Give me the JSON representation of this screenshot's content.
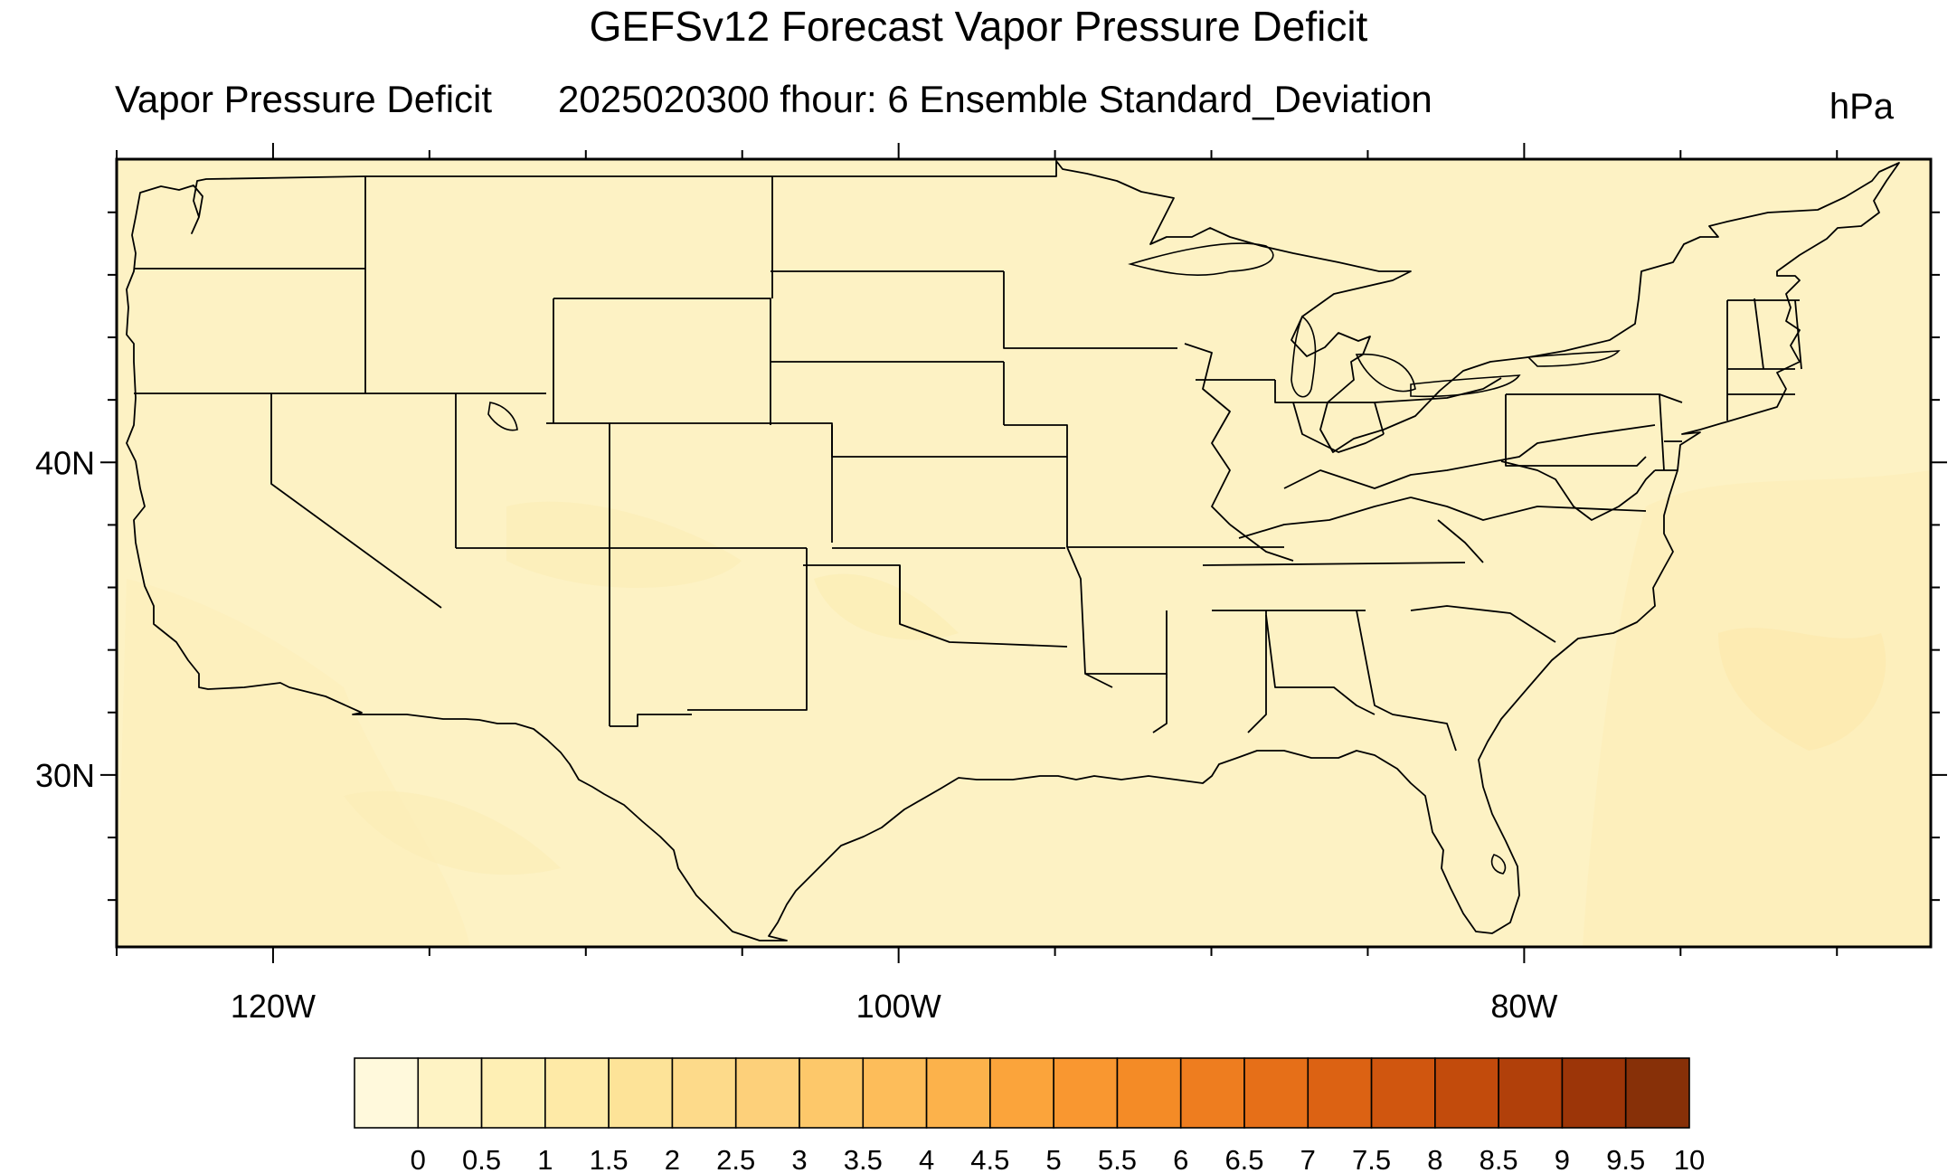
{
  "title": "GEFSv12 Forecast Vapor Pressure Deficit",
  "subtitle_left": "Vapor Pressure Deficit",
  "subtitle_center": "2025020300 fhour: 6 Ensemble Standard_Deviation",
  "units": "hPa",
  "map": {
    "projection": "cylindrical-equidistant",
    "region": "Contiguous United States",
    "lon_range": [
      -125,
      -67
    ],
    "lat_range": [
      24.5,
      49.7
    ],
    "x_ticks": [
      {
        "value": -120,
        "label": "120W"
      },
      {
        "value": -100,
        "label": "100W"
      },
      {
        "value": -80,
        "label": "80W"
      }
    ],
    "y_ticks": [
      {
        "value": 40,
        "label": "40N"
      },
      {
        "value": 30,
        "label": "30N"
      }
    ],
    "field_note": "values near 0.5 hPa across domain",
    "background_color": "#fdf2c4"
  },
  "colorbar": {
    "labels": [
      "0",
      "0.5",
      "1",
      "1.5",
      "2",
      "2.5",
      "3",
      "3.5",
      "4",
      "4.5",
      "5",
      "5.5",
      "6",
      "6.5",
      "7",
      "7.5",
      "8",
      "8.5",
      "9",
      "9.5",
      "10"
    ],
    "colors": [
      "#fff9dc",
      "#fef3c4",
      "#feefb4",
      "#feeaa7",
      "#fde398",
      "#fdda8a",
      "#fdd07a",
      "#fdc86a",
      "#fdbd5a",
      "#fcb24b",
      "#fba43b",
      "#f99730",
      "#f48b26",
      "#ee7d1f",
      "#e66f18",
      "#dc6213",
      "#d0560f",
      "#c24b0c",
      "#b1400a",
      "#9c3508",
      "#873008"
    ]
  }
}
